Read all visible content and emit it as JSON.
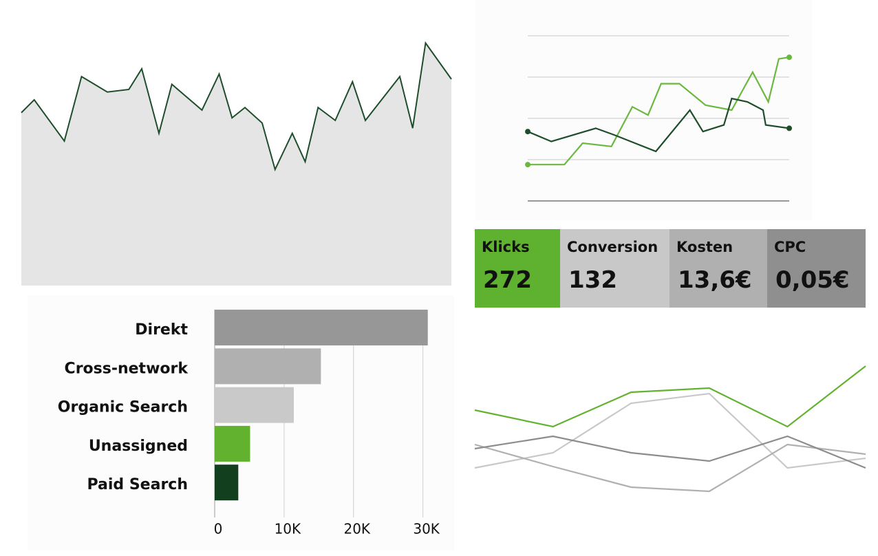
{
  "chart_data": [
    {
      "type": "area",
      "color": "#1d4d2b",
      "fill": "#e6e5e6",
      "x": [
        0,
        3,
        10,
        14,
        20,
        25,
        28,
        32,
        35,
        42,
        46,
        49,
        52,
        56,
        59,
        63,
        66,
        69,
        73,
        77,
        80,
        88,
        91,
        94,
        100
      ],
      "values": [
        67,
        72,
        56,
        81,
        75,
        76,
        84,
        59,
        78,
        68,
        82,
        65,
        69,
        63,
        45,
        59,
        48,
        69,
        64,
        79,
        64,
        81,
        61,
        94,
        80
      ],
      "xlim": [
        0,
        100
      ],
      "ylim": [
        0,
        100
      ]
    },
    {
      "type": "line",
      "xlim": [
        0,
        100
      ],
      "ylim": [
        0,
        100
      ],
      "yticks": [
        0,
        25,
        50,
        75,
        100
      ],
      "grid": true,
      "endpoint_markers": true,
      "series": [
        {
          "color": "#6ab83f",
          "x": [
            0,
            14,
            21,
            32,
            40,
            46,
            51,
            58,
            68,
            78,
            86,
            92,
            96,
            100
          ],
          "values": [
            22,
            22,
            35,
            33,
            57,
            52,
            71,
            71,
            58,
            55,
            78,
            60,
            86,
            87
          ]
        },
        {
          "color": "#1d4d2b",
          "x": [
            0,
            9,
            26,
            33,
            49,
            62,
            67,
            75,
            78,
            84,
            90,
            91,
            100
          ],
          "values": [
            42,
            36,
            44,
            40,
            30,
            55,
            42,
            46,
            62,
            60,
            55,
            46,
            44
          ]
        }
      ]
    },
    {
      "type": "hbar",
      "categories": [
        "Direkt",
        "Cross-network",
        "Organic Search",
        "Unassigned",
        "Paid Search"
      ],
      "values": [
        30700,
        15300,
        11400,
        5100,
        3400
      ],
      "colors": [
        "#979797",
        "#b0b0b0",
        "#c9c9c9",
        "#62b22f",
        "#12401f"
      ],
      "xlim": [
        0,
        34000
      ],
      "xticks": [
        0,
        {
          "value": 10000,
          "label": "10K"
        },
        {
          "value": 20000,
          "label": "20K"
        },
        {
          "value": 30000,
          "label": "30K"
        }
      ],
      "grid": true
    },
    {
      "type": "line",
      "x": [
        0,
        1,
        2,
        3,
        4,
        5
      ],
      "xlim": [
        0,
        5
      ],
      "ylim": [
        0,
        100
      ],
      "series": [
        {
          "color": "#62b22f",
          "values": [
            62,
            50,
            75,
            78,
            50,
            94
          ]
        },
        {
          "color": "#c8c8c8",
          "values": [
            20,
            31,
            67,
            74,
            20,
            27
          ]
        },
        {
          "color": "#b0b0b0",
          "values": [
            37,
            21,
            6,
            3,
            37,
            30
          ]
        },
        {
          "color": "#8c8c8c",
          "values": [
            34,
            43,
            31,
            25,
            43,
            20
          ]
        }
      ]
    }
  ],
  "kpis": [
    {
      "label": "Klicks",
      "value": "272",
      "color": "#5fb130"
    },
    {
      "label": "Conversion",
      "value": "132",
      "color": "#c8c8c8"
    },
    {
      "label": "Kosten",
      "value": "13,6€",
      "color": "#b0b0b0"
    },
    {
      "label": "CPC",
      "value": "0,05€",
      "color": "#8f8f8f"
    }
  ]
}
